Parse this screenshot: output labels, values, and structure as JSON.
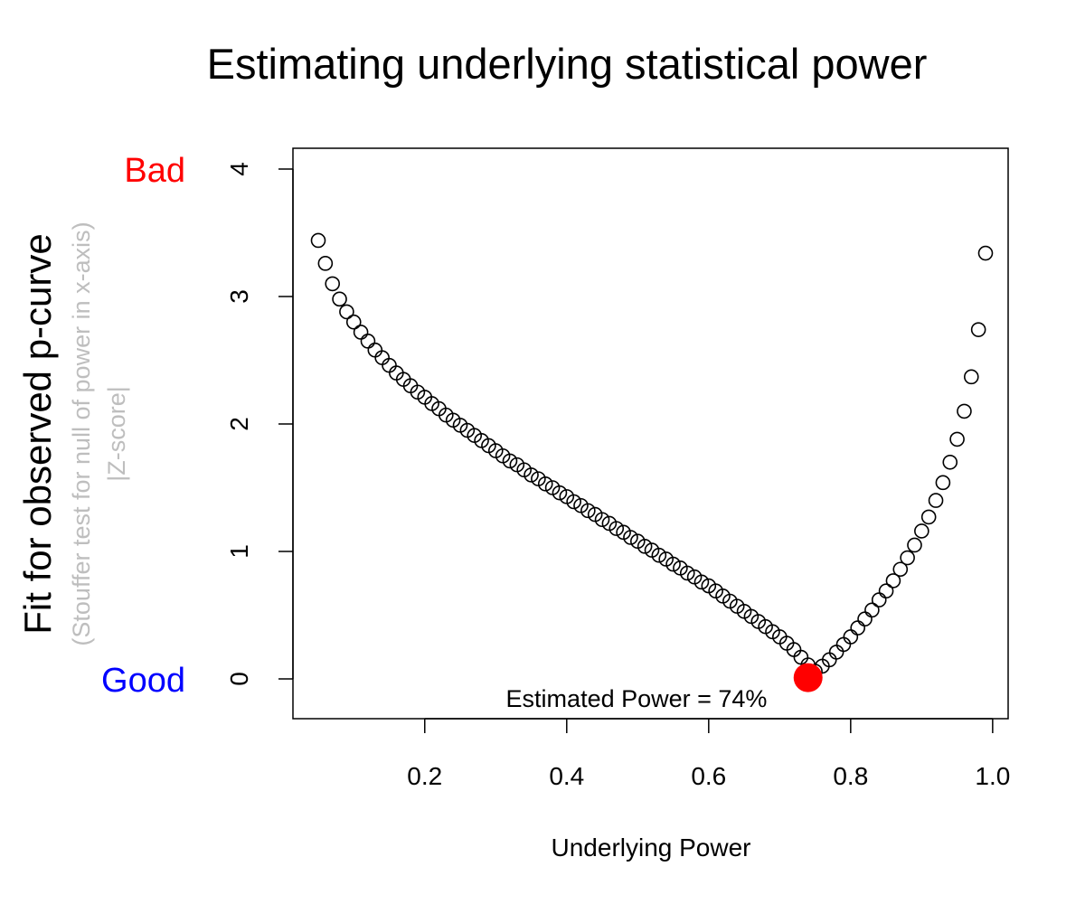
{
  "chart_data": {
    "type": "scatter",
    "title": "Estimating underlying statistical power",
    "xlabel": "Underlying Power",
    "ylabel": "Fit for observed p-curve",
    "ylabel_sub1": "(Stouffer test for null of power in x-axis)",
    "ylabel_sub2": "|Z-score|",
    "bad_label": "Bad",
    "good_label": "Good",
    "annotation": "Estimated Power = 74%",
    "xlim": [
      0.05,
      0.99
    ],
    "ylim": [
      0,
      4
    ],
    "x_ticks": [
      {
        "value": 0.2,
        "label": "0.2"
      },
      {
        "value": 0.4,
        "label": "0.4"
      },
      {
        "value": 0.6,
        "label": "0.6"
      },
      {
        "value": 0.8,
        "label": "0.8"
      },
      {
        "value": 1.0,
        "label": "1.0"
      }
    ],
    "y_ticks": [
      {
        "value": 0,
        "label": "0"
      },
      {
        "value": 1,
        "label": "1"
      },
      {
        "value": 2,
        "label": "2"
      },
      {
        "value": 3,
        "label": "3"
      },
      {
        "value": 4,
        "label": "4"
      }
    ],
    "points": [
      {
        "x": 0.05,
        "y": 3.44
      },
      {
        "x": 0.06,
        "y": 3.26
      },
      {
        "x": 0.07,
        "y": 3.1
      },
      {
        "x": 0.08,
        "y": 2.98
      },
      {
        "x": 0.09,
        "y": 2.88
      },
      {
        "x": 0.1,
        "y": 2.8
      },
      {
        "x": 0.11,
        "y": 2.72
      },
      {
        "x": 0.12,
        "y": 2.65
      },
      {
        "x": 0.13,
        "y": 2.58
      },
      {
        "x": 0.14,
        "y": 2.52
      },
      {
        "x": 0.15,
        "y": 2.46
      },
      {
        "x": 0.16,
        "y": 2.4
      },
      {
        "x": 0.17,
        "y": 2.35
      },
      {
        "x": 0.18,
        "y": 2.3
      },
      {
        "x": 0.19,
        "y": 2.25
      },
      {
        "x": 0.2,
        "y": 2.21
      },
      {
        "x": 0.21,
        "y": 2.16
      },
      {
        "x": 0.22,
        "y": 2.12
      },
      {
        "x": 0.23,
        "y": 2.07
      },
      {
        "x": 0.24,
        "y": 2.03
      },
      {
        "x": 0.25,
        "y": 1.99
      },
      {
        "x": 0.26,
        "y": 1.95
      },
      {
        "x": 0.27,
        "y": 1.91
      },
      {
        "x": 0.28,
        "y": 1.87
      },
      {
        "x": 0.29,
        "y": 1.83
      },
      {
        "x": 0.3,
        "y": 1.79
      },
      {
        "x": 0.31,
        "y": 1.75
      },
      {
        "x": 0.32,
        "y": 1.71
      },
      {
        "x": 0.33,
        "y": 1.68
      },
      {
        "x": 0.34,
        "y": 1.64
      },
      {
        "x": 0.35,
        "y": 1.6
      },
      {
        "x": 0.36,
        "y": 1.57
      },
      {
        "x": 0.37,
        "y": 1.53
      },
      {
        "x": 0.38,
        "y": 1.5
      },
      {
        "x": 0.39,
        "y": 1.46
      },
      {
        "x": 0.4,
        "y": 1.43
      },
      {
        "x": 0.41,
        "y": 1.39
      },
      {
        "x": 0.42,
        "y": 1.36
      },
      {
        "x": 0.43,
        "y": 1.32
      },
      {
        "x": 0.44,
        "y": 1.29
      },
      {
        "x": 0.45,
        "y": 1.25
      },
      {
        "x": 0.46,
        "y": 1.22
      },
      {
        "x": 0.47,
        "y": 1.18
      },
      {
        "x": 0.48,
        "y": 1.15
      },
      {
        "x": 0.49,
        "y": 1.11
      },
      {
        "x": 0.5,
        "y": 1.08
      },
      {
        "x": 0.51,
        "y": 1.04
      },
      {
        "x": 0.52,
        "y": 1.01
      },
      {
        "x": 0.53,
        "y": 0.97
      },
      {
        "x": 0.54,
        "y": 0.94
      },
      {
        "x": 0.55,
        "y": 0.9
      },
      {
        "x": 0.56,
        "y": 0.87
      },
      {
        "x": 0.57,
        "y": 0.83
      },
      {
        "x": 0.58,
        "y": 0.8
      },
      {
        "x": 0.59,
        "y": 0.76
      },
      {
        "x": 0.6,
        "y": 0.73
      },
      {
        "x": 0.61,
        "y": 0.69
      },
      {
        "x": 0.62,
        "y": 0.65
      },
      {
        "x": 0.63,
        "y": 0.61
      },
      {
        "x": 0.64,
        "y": 0.57
      },
      {
        "x": 0.65,
        "y": 0.53
      },
      {
        "x": 0.66,
        "y": 0.49
      },
      {
        "x": 0.67,
        "y": 0.45
      },
      {
        "x": 0.68,
        "y": 0.41
      },
      {
        "x": 0.69,
        "y": 0.37
      },
      {
        "x": 0.7,
        "y": 0.33
      },
      {
        "x": 0.71,
        "y": 0.28
      },
      {
        "x": 0.72,
        "y": 0.23
      },
      {
        "x": 0.73,
        "y": 0.17
      },
      {
        "x": 0.74,
        "y": 0.11
      },
      {
        "x": 0.75,
        "y": 0.06
      },
      {
        "x": 0.76,
        "y": 0.1
      },
      {
        "x": 0.77,
        "y": 0.15
      },
      {
        "x": 0.78,
        "y": 0.21
      },
      {
        "x": 0.79,
        "y": 0.27
      },
      {
        "x": 0.8,
        "y": 0.33
      },
      {
        "x": 0.81,
        "y": 0.4
      },
      {
        "x": 0.82,
        "y": 0.47
      },
      {
        "x": 0.83,
        "y": 0.54
      },
      {
        "x": 0.84,
        "y": 0.62
      },
      {
        "x": 0.85,
        "y": 0.69
      },
      {
        "x": 0.86,
        "y": 0.77
      },
      {
        "x": 0.87,
        "y": 0.86
      },
      {
        "x": 0.88,
        "y": 0.95
      },
      {
        "x": 0.89,
        "y": 1.05
      },
      {
        "x": 0.9,
        "y": 1.16
      },
      {
        "x": 0.91,
        "y": 1.27
      },
      {
        "x": 0.92,
        "y": 1.4
      },
      {
        "x": 0.93,
        "y": 1.54
      },
      {
        "x": 0.94,
        "y": 1.7
      },
      {
        "x": 0.95,
        "y": 1.88
      },
      {
        "x": 0.96,
        "y": 2.1
      },
      {
        "x": 0.97,
        "y": 2.37
      },
      {
        "x": 0.98,
        "y": 2.74
      },
      {
        "x": 0.99,
        "y": 3.34
      }
    ],
    "estimate": {
      "x": 0.74,
      "y": 0.01
    },
    "colors": {
      "points": "#000000",
      "estimate": "#ff0000",
      "bad": "#ff0000",
      "good": "#0000ff",
      "ylabel_sub": "#bebebe"
    }
  }
}
